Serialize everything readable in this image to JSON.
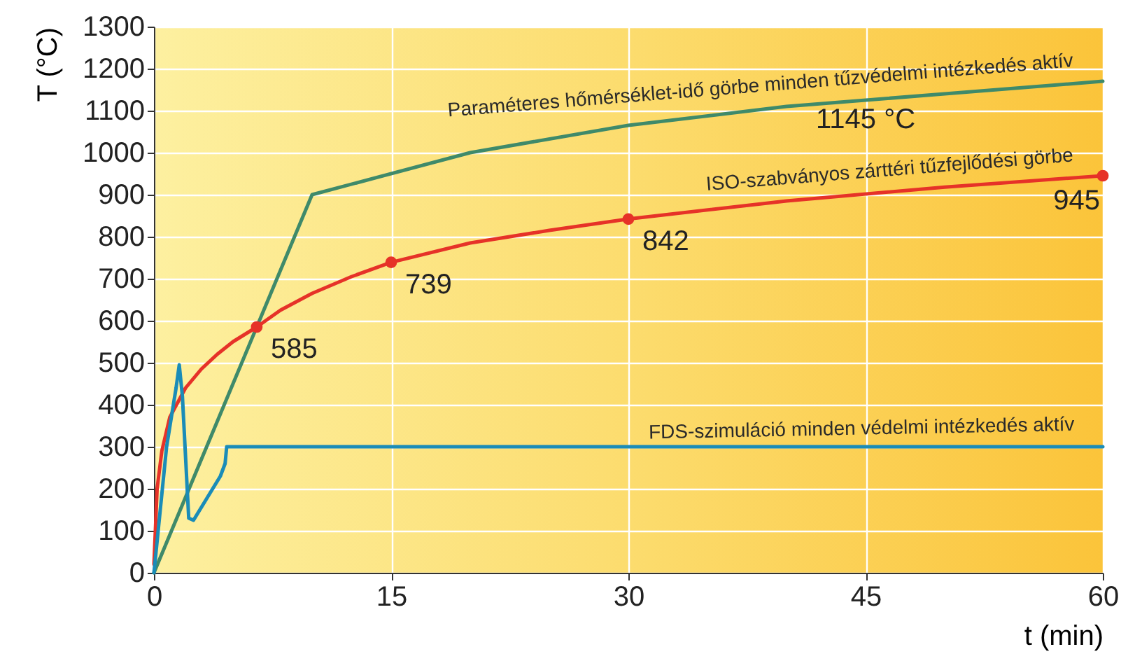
{
  "chart_data": {
    "type": "line",
    "xlabel": "t (min)",
    "ylabel": "T (°C)",
    "xlim": [
      0,
      60
    ],
    "xticks": [
      0,
      15,
      30,
      45,
      60
    ],
    "ylim": [
      0,
      1300
    ],
    "yticks": [
      0,
      100,
      200,
      300,
      400,
      500,
      600,
      700,
      800,
      900,
      1000,
      1100,
      1200,
      1300
    ],
    "grid": true,
    "line_style": "solid",
    "series": [
      {
        "name": "Paraméteres hőmérséklet-idő görbe minden tűzvédelmi intézkedés aktív",
        "color": "#3f8a6a",
        "x": [
          0,
          10,
          20,
          30,
          40,
          50,
          60
        ],
        "values": [
          0,
          900,
          1000,
          1065,
          1110,
          1140,
          1170
        ]
      },
      {
        "name": "ISO-szabványos zárttéri tűzfejlődési görbe",
        "color": "#e63228",
        "x": [
          0,
          0.2,
          0.5,
          1,
          2,
          3,
          4,
          5,
          6.5,
          8,
          10,
          12.5,
          15,
          20,
          25,
          30,
          40,
          50,
          60
        ],
        "values": [
          20,
          200,
          290,
          370,
          440,
          485,
          520,
          550,
          585,
          625,
          665,
          705,
          739,
          785,
          815,
          842,
          885,
          918,
          945
        ]
      },
      {
        "name": "FDS-szimuláció minden védelmi intézkedés aktív",
        "color": "#1a8cb8",
        "x": [
          0,
          0.8,
          1.4,
          1.6,
          1.8,
          2.2,
          2.5,
          4.2,
          4.5,
          4.6,
          60
        ],
        "values": [
          0,
          300,
          440,
          495,
          420,
          130,
          125,
          230,
          260,
          300,
          300
        ]
      },
      {
        "type": "scatter",
        "color": "#e63228",
        "x": [
          6.5,
          15,
          30,
          60
        ],
        "values": [
          585,
          739,
          842,
          945
        ],
        "data_labels": true
      }
    ],
    "annotations": [
      {
        "text": "1145 °C",
        "x": 45,
        "y": 1145
      }
    ]
  }
}
